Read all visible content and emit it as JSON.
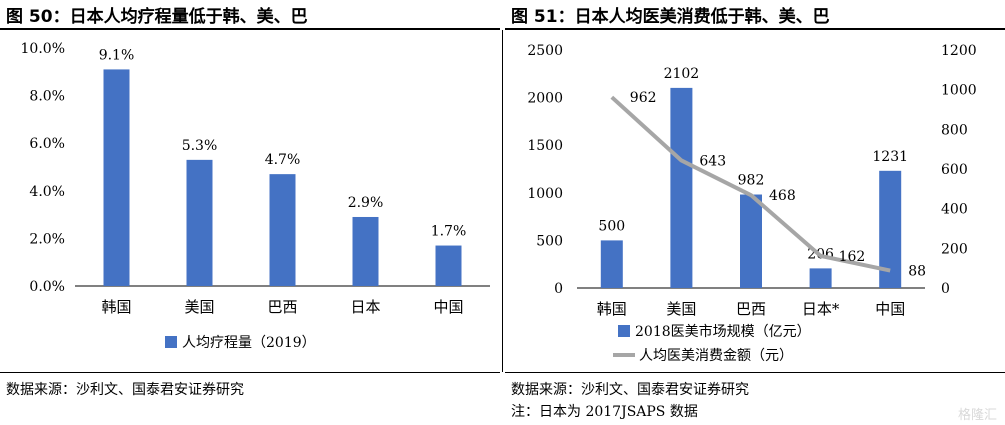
{
  "watermark": "格隆汇",
  "left": {
    "title": "图 50：日本人均疗程量低于韩、美、巴",
    "source": "数据来源：沙利文、国泰君安证券研究",
    "bar_color": "#4472C4"
  },
  "right": {
    "title": "图 51：日本人均医美消费低于韩、美、巴",
    "source": "数据来源：沙利文、国泰君安证券研究",
    "note": "注：日本为 2017JSAPS 数据",
    "bar_color": "#4472C4",
    "line_color": "#A6A6A6"
  },
  "chart_data": [
    {
      "type": "bar",
      "categories": [
        "韩国",
        "美国",
        "巴西",
        "日本",
        "中国"
      ],
      "series": [
        {
          "name": "人均疗程量（2019）",
          "values": [
            9.1,
            5.3,
            4.7,
            2.9,
            1.7
          ],
          "labels": [
            "9.1%",
            "5.3%",
            "4.7%",
            "2.9%",
            "1.7%"
          ]
        }
      ],
      "yticks": [
        "0.0%",
        "2.0%",
        "4.0%",
        "6.0%",
        "8.0%",
        "10.0%"
      ],
      "ylim": [
        0,
        10
      ],
      "legend_position": "bottom",
      "grid": false
    },
    {
      "type": "bar+line",
      "categories": [
        "韩国",
        "美国",
        "巴西",
        "日本*",
        "中国"
      ],
      "series": [
        {
          "name": "2018医美市场规模（亿元）",
          "type": "bar",
          "axis": "left",
          "values": [
            500,
            2102,
            982,
            206,
            1231
          ],
          "labels": [
            "500",
            "2102",
            "982",
            "206",
            "1231"
          ]
        },
        {
          "name": "人均医美消费金额（元）",
          "type": "line",
          "axis": "right",
          "values": [
            962,
            643,
            468,
            162,
            88
          ],
          "labels": [
            "962",
            "643",
            "468",
            "162",
            "88"
          ]
        }
      ],
      "yticks_left": [
        "0",
        "500",
        "1000",
        "1500",
        "2000",
        "2500"
      ],
      "ylim_left": [
        0,
        2500
      ],
      "yticks_right": [
        "0",
        "200",
        "400",
        "600",
        "800",
        "1000",
        "1200"
      ],
      "ylim_right": [
        0,
        1200
      ],
      "legend_position": "bottom",
      "grid": false
    }
  ]
}
